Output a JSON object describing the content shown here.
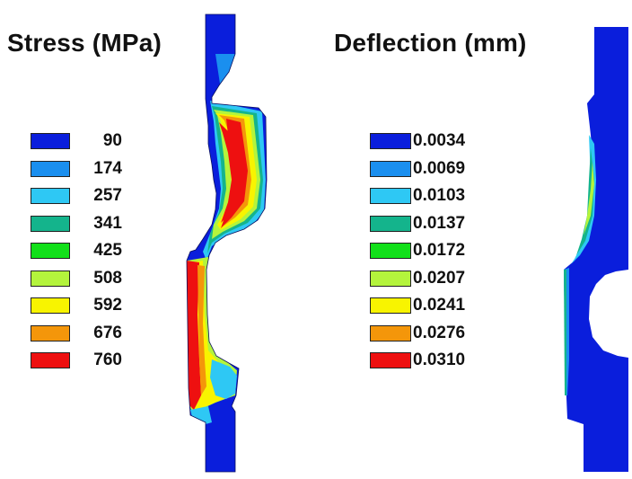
{
  "stress": {
    "title": "Stress (MPa)",
    "legend": [
      {
        "label": "90",
        "color": "#0a1edc"
      },
      {
        "label": "174",
        "color": "#1a8fef"
      },
      {
        "label": "257",
        "color": "#2ec8f4"
      },
      {
        "label": "341",
        "color": "#14b48c"
      },
      {
        "label": "425",
        "color": "#12e01a"
      },
      {
        "label": "508",
        "color": "#b4f43c"
      },
      {
        "label": "592",
        "color": "#f8f400"
      },
      {
        "label": "676",
        "color": "#f4960a"
      },
      {
        "label": "760",
        "color": "#ee1010"
      }
    ]
  },
  "deflection": {
    "title": "Deflection (mm)",
    "legend": [
      {
        "label": "0.0034",
        "color": "#0a1edc"
      },
      {
        "label": "0.0069",
        "color": "#1a8fef"
      },
      {
        "label": "0.0103",
        "color": "#2ec8f4"
      },
      {
        "label": "0.0137",
        "color": "#14b48c"
      },
      {
        "label": "0.0172",
        "color": "#12e01a"
      },
      {
        "label": "0.0207",
        "color": "#b4f43c"
      },
      {
        "label": "0.0241",
        "color": "#f8f400"
      },
      {
        "label": "0.0276",
        "color": "#f4960a"
      },
      {
        "label": "0.0310",
        "color": "#ee1010"
      }
    ]
  }
}
